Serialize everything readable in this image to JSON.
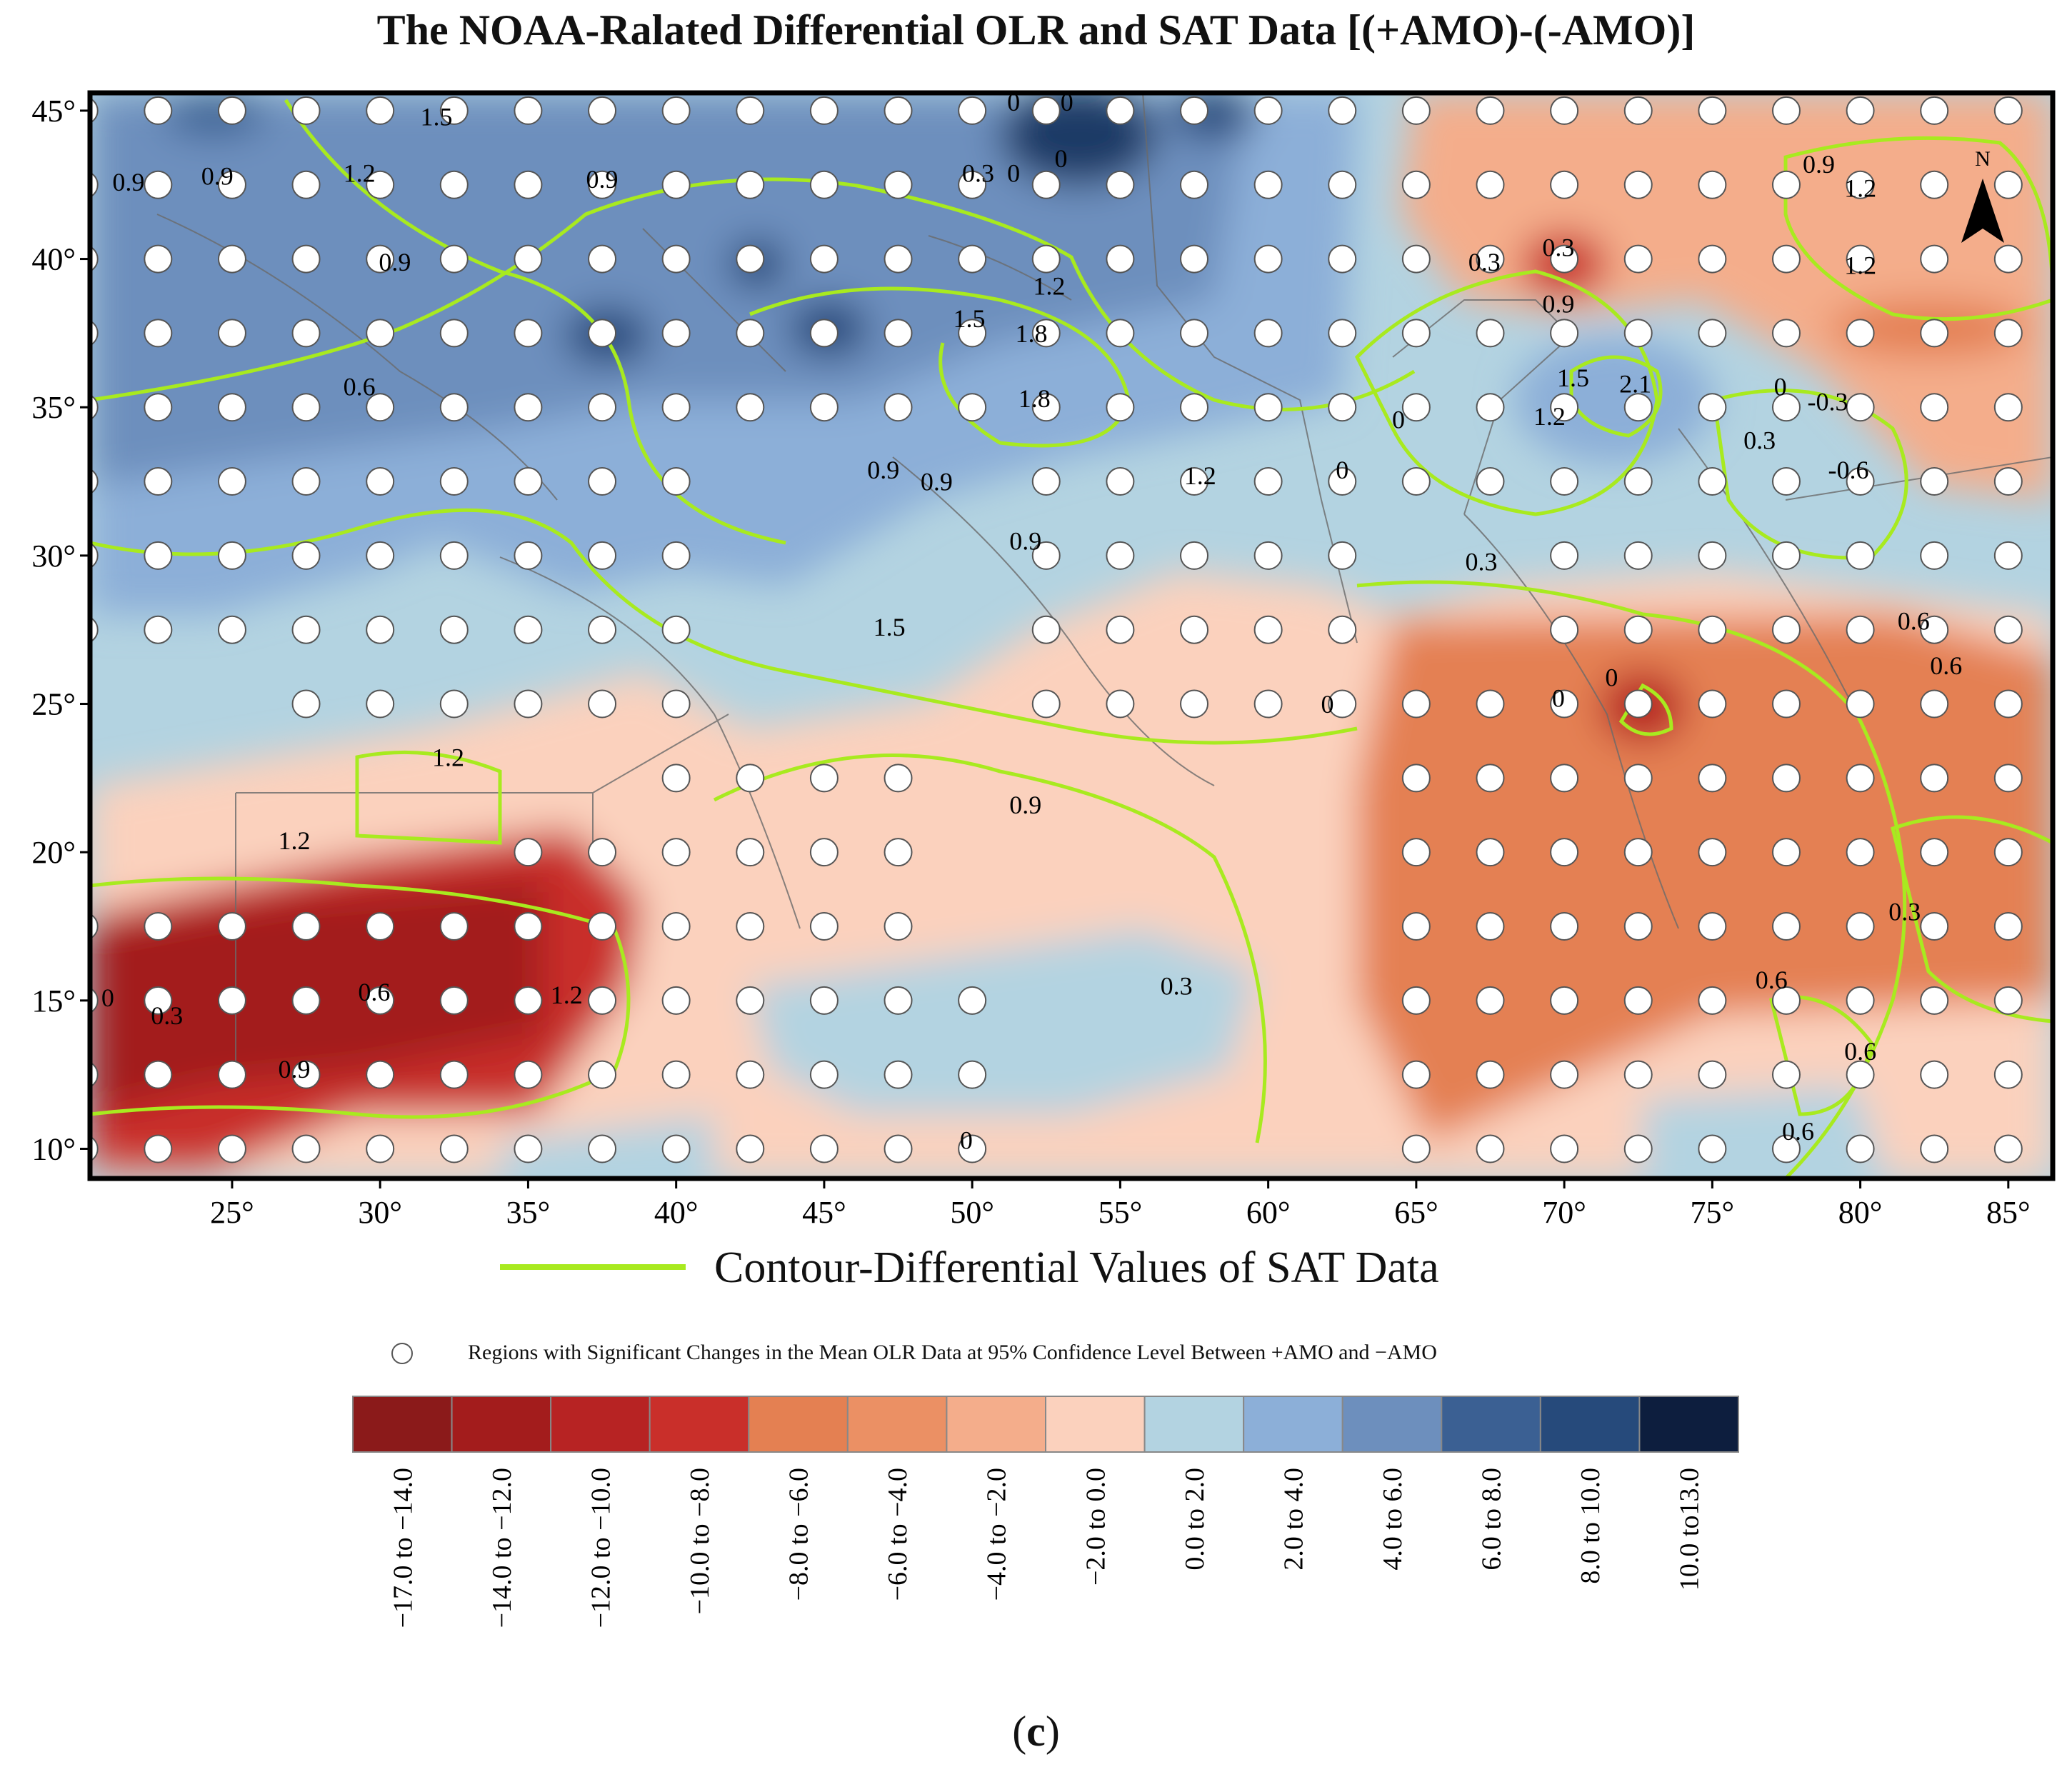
{
  "title": "The NOAA-Ralated Differential OLR and SAT Data [(+AMO)-(-AMO)]",
  "caption": {
    "open": "(",
    "letter": "c",
    "close": ")"
  },
  "map": {
    "lon_range": [
      20.2,
      86.5
    ],
    "lat_range": [
      9.0,
      45.6
    ],
    "x_ticks": [
      "25°",
      "30°",
      "35°",
      "40°",
      "45°",
      "50°",
      "55°",
      "60°",
      "65°",
      "70°",
      "75°",
      "80°",
      "85°"
    ],
    "y_ticks": [
      "10°",
      "15°",
      "20°",
      "25°",
      "30°",
      "35°",
      "40°",
      "45°"
    ],
    "north_label": "N",
    "colors": {
      "contour": "#a8ea1f",
      "border": "#6a6a6a",
      "frame": "#000000"
    }
  },
  "legend": {
    "contour_label": "Contour-Differential Values of SAT Data",
    "dots_label": "Regions with Significant Changes in the Mean OLR Data at 95% Confidence Level Between +AMO and −AMO",
    "classes": [
      {
        "label": "−17.0 to −14.0",
        "color": "#8b1a1a"
      },
      {
        "label": "−14.0 to −12.0",
        "color": "#a31c1c"
      },
      {
        "label": "−12.0 to −10.0",
        "color": "#b72323"
      },
      {
        "label": "−10.0 to −8.0",
        "color": "#c92f2a"
      },
      {
        "label": "−8.0 to −6.0",
        "color": "#e48052"
      },
      {
        "label": "−6.0 to −4.0",
        "color": "#eb9064"
      },
      {
        "label": "−4.0 to −2.0",
        "color": "#f4ad8b"
      },
      {
        "label": "−2.0 to 0.0",
        "color": "#fbd1bd"
      },
      {
        "label": "0.0 to 2.0",
        "color": "#b3d3e1"
      },
      {
        "label": "2.0 to 4.0",
        "color": "#8cafd8"
      },
      {
        "label": "4.0 to 6.0",
        "color": "#6d8fbd"
      },
      {
        "label": "6.0 to 8.0",
        "color": "#3b6093"
      },
      {
        "label": "8.0 to 10.0",
        "color": "#264a7b"
      },
      {
        "label": "10.0 to13.0",
        "color": "#0d1e3e"
      }
    ]
  },
  "contour_labels": [
    {
      "text": "1.5",
      "lon": 31.9,
      "lat": 44.5
    },
    {
      "text": "0.9",
      "lon": 21.5,
      "lat": 42.3
    },
    {
      "text": "0.9",
      "lon": 24.5,
      "lat": 42.5
    },
    {
      "text": "1.2",
      "lon": 29.3,
      "lat": 42.6
    },
    {
      "text": "0.9",
      "lon": 37.5,
      "lat": 42.4
    },
    {
      "text": "0.9",
      "lon": 30.5,
      "lat": 39.6
    },
    {
      "text": "0.6",
      "lon": 29.3,
      "lat": 35.4
    },
    {
      "text": "0",
      "lon": 51.4,
      "lat": 45.0
    },
    {
      "text": "0",
      "lon": 53.2,
      "lat": 45.0
    },
    {
      "text": "0.3",
      "lon": 50.2,
      "lat": 42.6
    },
    {
      "text": "0",
      "lon": 51.4,
      "lat": 42.6
    },
    {
      "text": "0",
      "lon": 53.0,
      "lat": 43.1
    },
    {
      "text": "1.2",
      "lon": 52.6,
      "lat": 38.8
    },
    {
      "text": "1.5",
      "lon": 49.9,
      "lat": 37.7
    },
    {
      "text": "1.8",
      "lon": 52.0,
      "lat": 37.2
    },
    {
      "text": "1.8",
      "lon": 52.1,
      "lat": 35.0
    },
    {
      "text": "0.9",
      "lon": 47.0,
      "lat": 32.6
    },
    {
      "text": "0.9",
      "lon": 48.8,
      "lat": 32.2
    },
    {
      "text": "1.2",
      "lon": 57.7,
      "lat": 32.4
    },
    {
      "text": "0.9",
      "lon": 51.8,
      "lat": 30.2
    },
    {
      "text": "1.5",
      "lon": 47.2,
      "lat": 27.3
    },
    {
      "text": "0.3",
      "lon": 67.3,
      "lat": 39.6
    },
    {
      "text": "0.3",
      "lon": 69.8,
      "lat": 40.1
    },
    {
      "text": "0.9",
      "lon": 69.8,
      "lat": 38.2
    },
    {
      "text": "1.5",
      "lon": 70.3,
      "lat": 35.7
    },
    {
      "text": "2.1",
      "lon": 72.4,
      "lat": 35.5
    },
    {
      "text": "1.2",
      "lon": 69.5,
      "lat": 34.4
    },
    {
      "text": "0",
      "lon": 64.4,
      "lat": 34.3
    },
    {
      "text": "0",
      "lon": 62.5,
      "lat": 32.6
    },
    {
      "text": "0",
      "lon": 77.3,
      "lat": 35.4
    },
    {
      "text": "-0.3",
      "lon": 78.9,
      "lat": 34.9
    },
    {
      "text": "0.3",
      "lon": 76.6,
      "lat": 33.6
    },
    {
      "text": "-0.6",
      "lon": 79.6,
      "lat": 32.6
    },
    {
      "text": "0.9",
      "lon": 78.6,
      "lat": 42.9
    },
    {
      "text": "1.2",
      "lon": 80.0,
      "lat": 42.1
    },
    {
      "text": "1.2",
      "lon": 80.0,
      "lat": 39.5
    },
    {
      "text": "0.3",
      "lon": 67.2,
      "lat": 29.5
    },
    {
      "text": "0.6",
      "lon": 81.8,
      "lat": 27.5
    },
    {
      "text": "0.6",
      "lon": 82.9,
      "lat": 26.0
    },
    {
      "text": "0",
      "lon": 62.0,
      "lat": 24.7
    },
    {
      "text": "0",
      "lon": 69.8,
      "lat": 24.9
    },
    {
      "text": "0",
      "lon": 71.6,
      "lat": 25.6
    },
    {
      "text": "1.2",
      "lon": 32.3,
      "lat": 22.9
    },
    {
      "text": "1.2",
      "lon": 27.1,
      "lat": 20.1
    },
    {
      "text": "0.9",
      "lon": 51.8,
      "lat": 21.3
    },
    {
      "text": "0.6",
      "lon": 29.8,
      "lat": 15.0
    },
    {
      "text": "1.2",
      "lon": 36.3,
      "lat": 14.9
    },
    {
      "text": "0",
      "lon": 20.8,
      "lat": 14.8
    },
    {
      "text": "0.3",
      "lon": 22.8,
      "lat": 14.2
    },
    {
      "text": "0.9",
      "lon": 27.1,
      "lat": 12.4
    },
    {
      "text": "0.3",
      "lon": 56.9,
      "lat": 15.2
    },
    {
      "text": "0.3",
      "lon": 81.5,
      "lat": 17.7
    },
    {
      "text": "0.6",
      "lon": 77.0,
      "lat": 15.4
    },
    {
      "text": "0.6",
      "lon": 80.0,
      "lat": 13.0
    },
    {
      "text": "0.6",
      "lon": 77.9,
      "lat": 10.3
    },
    {
      "text": "0",
      "lon": 49.8,
      "lat": 10.0
    }
  ]
}
